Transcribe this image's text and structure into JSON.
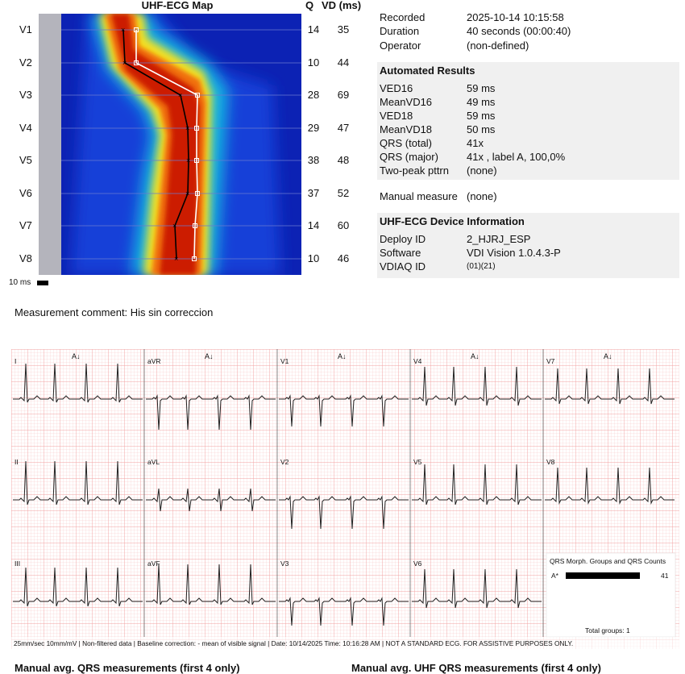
{
  "map": {
    "title": "UHF-ECG Map",
    "q_header": "Q",
    "vd_header": "VD (ms)",
    "scale_label": "10 ms",
    "leads": [
      {
        "lead": "V1",
        "q": "14",
        "vd": "35"
      },
      {
        "lead": "V2",
        "q": "10",
        "vd": "44"
      },
      {
        "lead": "V3",
        "q": "28",
        "vd": "69"
      },
      {
        "lead": "V4",
        "q": "29",
        "vd": "47"
      },
      {
        "lead": "V5",
        "q": "38",
        "vd": "48"
      },
      {
        "lead": "V6",
        "q": "37",
        "vd": "52"
      },
      {
        "lead": "V7",
        "q": "14",
        "vd": "60"
      },
      {
        "lead": "V8",
        "q": "10",
        "vd": "46"
      }
    ]
  },
  "recording": {
    "recorded_label": "Recorded",
    "recorded": "2025-10-14 10:15:58",
    "duration_label": "Duration",
    "duration": "40 seconds (00:00:40)",
    "operator_label": "Operator",
    "operator": "(non-defined)"
  },
  "automated": {
    "title": "Automated Results",
    "rows": [
      {
        "k": "VED16",
        "v": "59 ms"
      },
      {
        "k": "MeanVD16",
        "v": "49 ms"
      },
      {
        "k": "VED18",
        "v": "59 ms"
      },
      {
        "k": "MeanVD18",
        "v": "50 ms"
      },
      {
        "k": "QRS  (total)",
        "v": "41x"
      },
      {
        "k": "QRS  (major)",
        "v": "41x , label A, 100,0%"
      },
      {
        "k": "Two-peak  pttrn",
        "v": "(none)"
      }
    ]
  },
  "manual": {
    "label": "Manual  measure",
    "value": "(none)"
  },
  "device": {
    "title": "UHF-ECG Device Information",
    "deploy_label": "Deploy ID",
    "deploy": "2_HJRJ_ESP",
    "software_label": "Software",
    "software": "VDI Vision 1.0.4.3-P",
    "vdiaq_label": "VDIAQ  ID",
    "vdiaq": "(01)(21)"
  },
  "comment": "Measurement comment: His sin correccion",
  "ecg": {
    "columns": [
      {
        "leads": [
          "I",
          "II",
          "III"
        ]
      },
      {
        "leads": [
          "aVR",
          "aVL",
          "aVF"
        ]
      },
      {
        "leads": [
          "V1",
          "V2",
          "V3"
        ]
      },
      {
        "leads": [
          "V4",
          "V5",
          "V6"
        ]
      },
      {
        "leads": [
          "V7",
          "V8"
        ]
      }
    ],
    "marker": "A↓",
    "footer": "25mm/sec  10mm/mV | Non-filtered data | Baseline correction: - mean of visible signal | Date: 10/14/2025 Time: 10:16:28 AM | NOT A STANDARD ECG. FOR ASSISTIVE PURPOSES ONLY.",
    "qrs_box": {
      "title": "QRS Morph. Groups and QRS Counts",
      "label": "A*",
      "count": "41",
      "fraction": 1.0,
      "total": "Total groups: 1"
    }
  },
  "bottom": {
    "left": "Manual avg. QRS measurements (first 4 only)",
    "right": "Manual avg. UHF QRS measurements (first 4 only)"
  },
  "colors": {
    "hot": "#cc1a00",
    "cold": "#0a1aa0",
    "panel": "#f0f0f0",
    "grid": "#f4a5a5"
  }
}
